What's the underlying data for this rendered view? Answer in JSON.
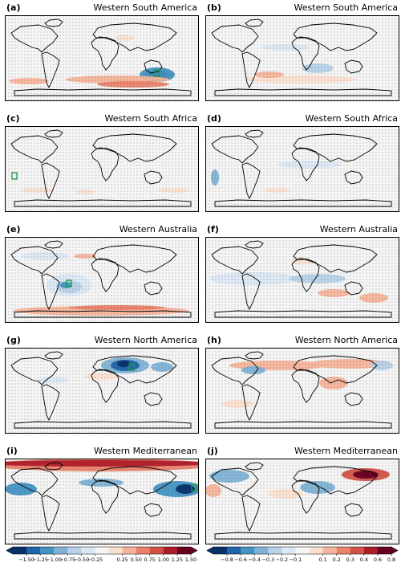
{
  "panels": [
    {
      "label": "(a)",
      "region": "Western South America"
    },
    {
      "label": "(b)",
      "region": "Western South America"
    },
    {
      "label": "(c)",
      "region": "Western South Africa"
    },
    {
      "label": "(d)",
      "region": "Western South Africa"
    },
    {
      "label": "(e)",
      "region": "Western Australia"
    },
    {
      "label": "(f)",
      "region": "Western Australia"
    },
    {
      "label": "(g)",
      "region": "Western North America"
    },
    {
      "label": "(h)",
      "region": "Western North America"
    },
    {
      "label": "(i)",
      "region": "Western Mediterranean"
    },
    {
      "label": "(j)",
      "region": "Western Mediterranean"
    }
  ],
  "colorbars": [
    {
      "ticks": [
        "−1.50",
        "−1.25",
        "−1.00",
        "−0.75",
        "−0.50",
        "−0.25",
        "0.25",
        "0.50",
        "0.75",
        "1.00",
        "1.25",
        "1.50"
      ]
    },
    {
      "ticks": [
        "−0.8",
        "−0.6",
        "−0.4",
        "−0.3",
        "−0.2",
        "−0.1",
        "0.1",
        "0.2",
        "0.3",
        "0.4",
        "0.6",
        "0.8"
      ]
    }
  ],
  "colors": {
    "neg": [
      "#08306b",
      "#1f63a8",
      "#4393c3",
      "#7fb2d6",
      "#b7d2e8",
      "#dbe8f3"
    ],
    "pos": [
      "#fbe0d0",
      "#f5b49a",
      "#e9826a",
      "#d35246",
      "#b01c2a",
      "#67001f"
    ],
    "mid": "#f5f5f5"
  }
}
